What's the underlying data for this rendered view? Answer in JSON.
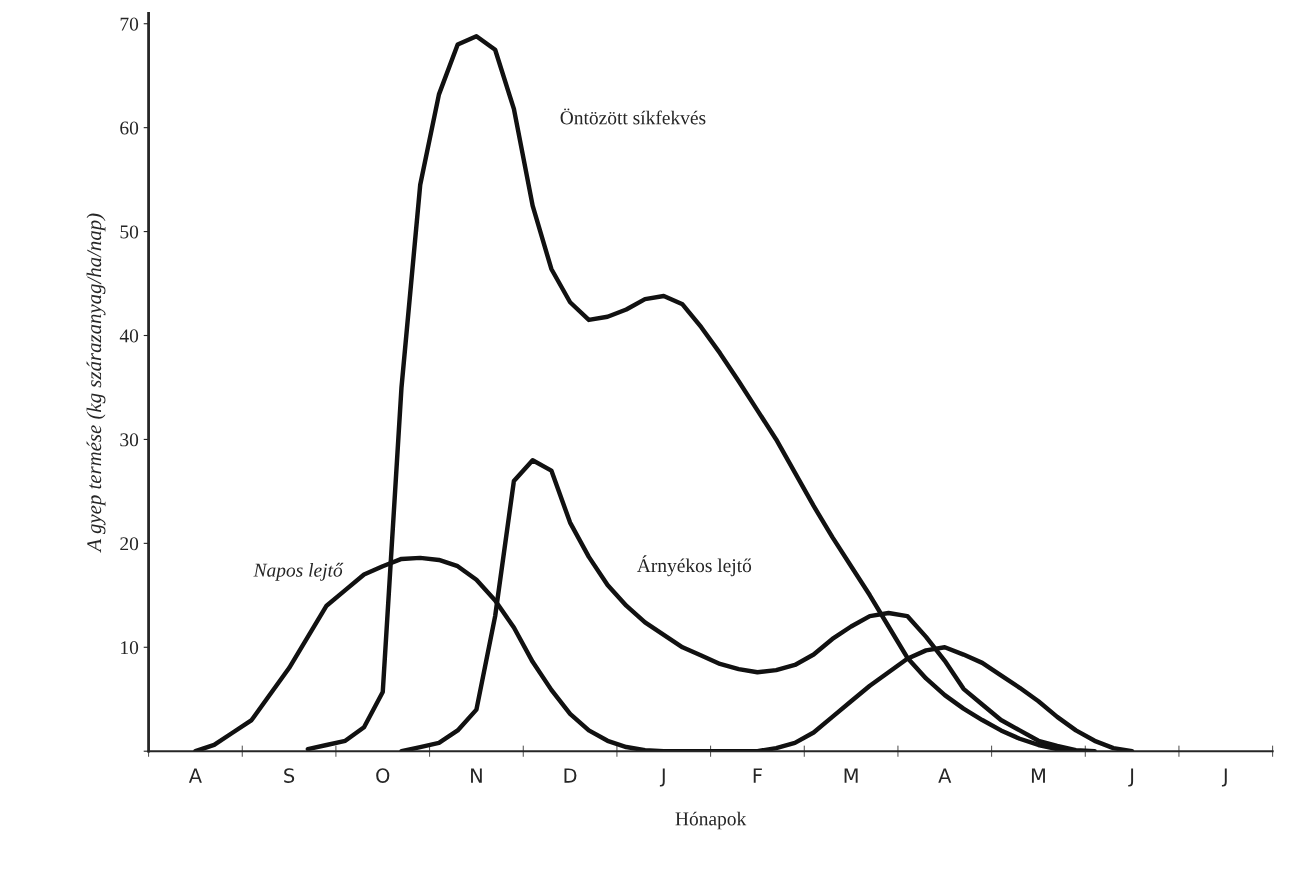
{
  "chart_data": {
    "type": "line",
    "xlabel": "Hónapok",
    "ylabel": "A gyep termése (kg szárazanyag/ha/nap)",
    "categories": [
      null,
      null,
      "A",
      null,
      null,
      null,
      null,
      "S",
      null,
      null,
      null,
      null,
      "O",
      null,
      null,
      null,
      null,
      "N",
      null,
      null,
      null,
      null,
      "D",
      null,
      null,
      null,
      null,
      "J",
      null,
      null,
      null,
      null,
      "F",
      null,
      null,
      null,
      null,
      "M",
      null,
      null,
      null,
      null,
      "A",
      null,
      null,
      null,
      null,
      "M",
      null,
      null,
      null,
      null,
      "J",
      null,
      null,
      null,
      null,
      "J",
      null,
      null
    ],
    "ylim": [
      0,
      71
    ],
    "yticks": [
      {
        "value": 0,
        "label": null
      },
      10,
      20,
      30,
      40,
      50,
      60,
      70
    ],
    "grid": false,
    "legend": false,
    "marker": "none",
    "line_style": "solid",
    "series": [
      {
        "name": "Öntözött síkfekvés",
        "color": "#111111",
        "values": [
          null,
          null,
          null,
          null,
          null,
          null,
          null,
          null,
          0.2,
          0.6,
          1,
          2.3,
          5.7,
          35,
          54.5,
          63.2,
          68,
          68.8,
          67.5,
          61.8,
          52.5,
          46.4,
          43.2,
          41.5,
          41.8,
          42.5,
          43.5,
          43.8,
          43,
          40.8,
          38.3,
          35.6,
          32.8,
          30,
          26.8,
          23.6,
          20.6,
          17.8,
          15,
          12,
          9,
          7,
          5.4,
          4.1,
          3,
          2,
          1.2,
          0.6,
          0.2,
          0,
          null,
          null,
          null,
          null,
          null,
          null,
          null,
          null,
          null,
          null
        ]
      },
      {
        "name": "Árnyékos lejtő",
        "color": "#111111",
        "values": [
          null,
          null,
          null,
          null,
          null,
          null,
          null,
          null,
          null,
          null,
          null,
          null,
          null,
          0,
          0.4,
          0.8,
          2,
          4,
          13,
          26,
          28,
          27,
          22,
          18.7,
          16,
          14,
          12.4,
          11.2,
          10,
          9.2,
          8.4,
          7.9,
          7.6,
          7.8,
          8.3,
          9.3,
          10.8,
          12,
          13,
          13.3,
          13,
          11,
          8.7,
          6,
          4.5,
          3,
          2,
          1,
          0.5,
          0.1,
          0,
          null,
          null,
          null,
          null,
          null,
          null,
          null,
          null,
          null
        ]
      },
      {
        "name": "Napos lejtő",
        "color": "#111111",
        "values": [
          null,
          null,
          0,
          0.6,
          1.8,
          3,
          5.5,
          8,
          11,
          14,
          15.5,
          17,
          17.8,
          18.5,
          18.6,
          18.4,
          17.8,
          16.5,
          14.5,
          11.9,
          8.6,
          5.9,
          3.6,
          2,
          1,
          0.4,
          0.1,
          0,
          0,
          0,
          0,
          0,
          0,
          0.3,
          0.8,
          1.8,
          3.3,
          4.8,
          6.3,
          7.6,
          8.9,
          9.7,
          10,
          9.3,
          8.5,
          7.3,
          6.1,
          4.8,
          3.3,
          2,
          1,
          0.3,
          0,
          null,
          null,
          null,
          null,
          null,
          null,
          null
        ]
      }
    ]
  }
}
